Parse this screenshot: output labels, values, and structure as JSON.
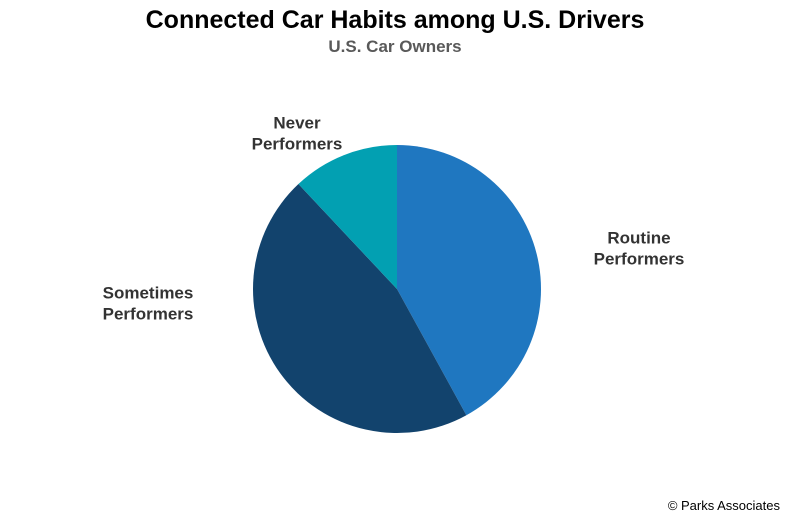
{
  "chart_data": {
    "type": "pie",
    "title": "Connected Car Habits among U.S. Drivers",
    "subtitle": "U.S. Car Owners",
    "start_angle_deg": 0,
    "direction": "clockwise",
    "slices": [
      {
        "label_lines": [
          "Routine",
          "Performers"
        ],
        "value": 42,
        "color": "#1f77c0"
      },
      {
        "label_lines": [
          "Sometimes",
          "Performers"
        ],
        "value": 46,
        "color": "#12436d"
      },
      {
        "label_lines": [
          "Never",
          "Performers"
        ],
        "value": 12,
        "color": "#02a0b2"
      }
    ]
  },
  "footer": {
    "source": "© Parks Associates"
  }
}
